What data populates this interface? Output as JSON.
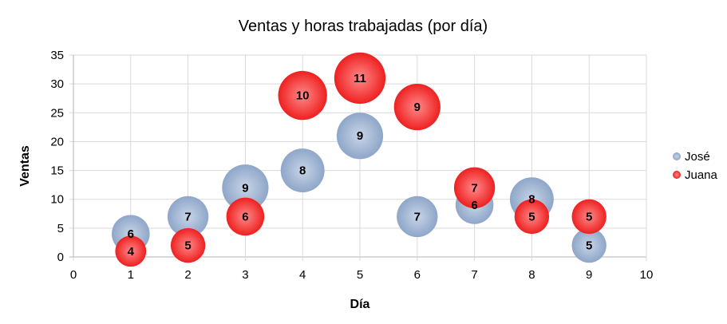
{
  "chart_data": {
    "type": "bubble",
    "title": "Ventas y horas trabajadas (por día)",
    "xlabel": "Día",
    "ylabel": "Ventas",
    "xlim": [
      0,
      10
    ],
    "ylim": [
      0,
      35
    ],
    "xticks": [
      "0",
      "1",
      "2",
      "3",
      "4",
      "5",
      "6",
      "7",
      "8",
      "9",
      "10"
    ],
    "yticks": [
      "0",
      "5",
      "10",
      "15",
      "20",
      "25",
      "30",
      "35"
    ],
    "grid": true,
    "legend": "right",
    "series": [
      {
        "name": "José",
        "color": "#7f9cc4",
        "points": [
          [
            1,
            4,
            6
          ],
          [
            2,
            7,
            7
          ],
          [
            3,
            12,
            9
          ],
          [
            4,
            15,
            8
          ],
          [
            5,
            21,
            9
          ],
          [
            6,
            7,
            7
          ],
          [
            7,
            9,
            6
          ],
          [
            8,
            10,
            8
          ],
          [
            9,
            2,
            5
          ]
        ]
      },
      {
        "name": "Juana",
        "color": "#ee2b2b",
        "points": [
          [
            1,
            1,
            4
          ],
          [
            2,
            2,
            5
          ],
          [
            3,
            7,
            6
          ],
          [
            4,
            28,
            10
          ],
          [
            5,
            31,
            11
          ],
          [
            6,
            26,
            9
          ],
          [
            7,
            12,
            7
          ],
          [
            8,
            7,
            5
          ],
          [
            9,
            7,
            5
          ]
        ]
      }
    ]
  }
}
